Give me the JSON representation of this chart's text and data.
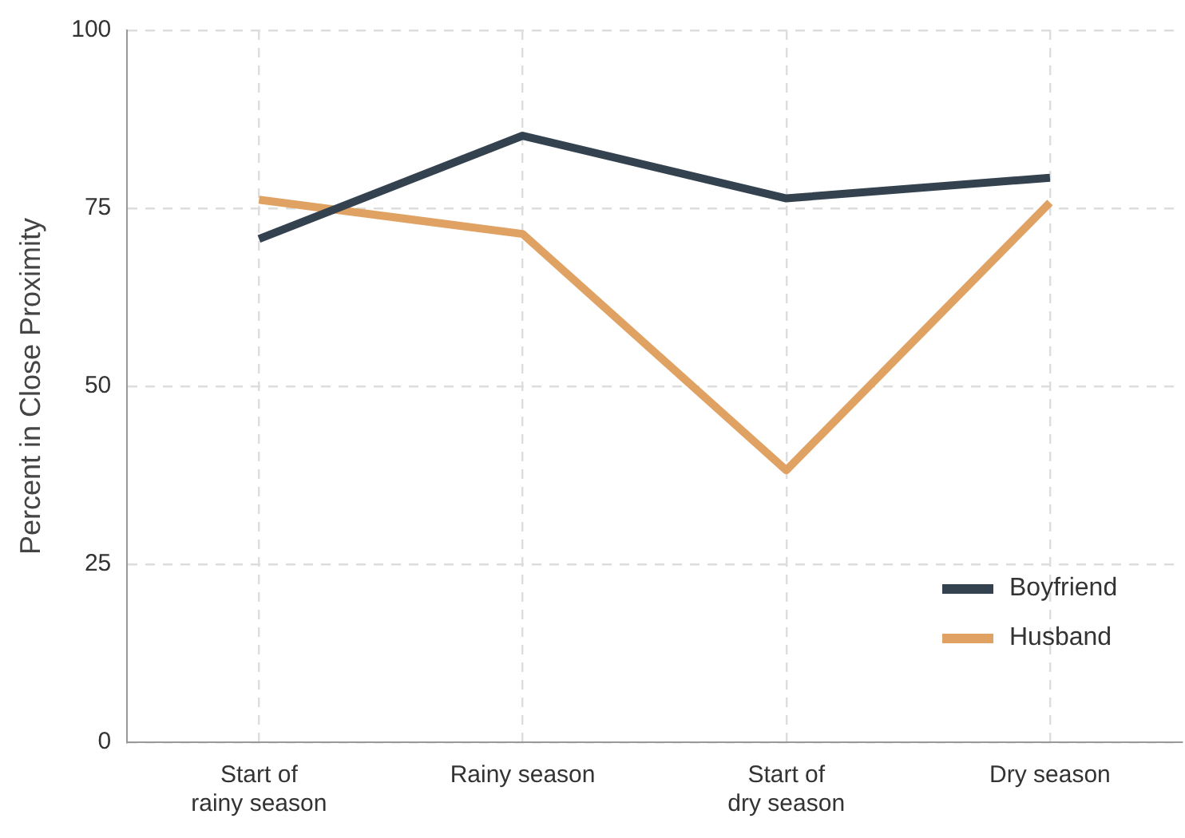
{
  "chart_data": {
    "type": "line",
    "ylabel": "Percent in Close Proximity",
    "categories": [
      "Start of\nrainy season",
      "Rainy season",
      "Start of\ndry season",
      "Dry season"
    ],
    "series": [
      {
        "name": "Boyfriend",
        "color": "#34424f",
        "values": [
          70.7,
          85.2,
          76.4,
          79.3
        ]
      },
      {
        "name": "Husband",
        "color": "#e0a263",
        "values": [
          76.2,
          71.4,
          38.2,
          75.8
        ]
      }
    ],
    "ylim": [
      0,
      100
    ],
    "yticks": [
      0,
      25,
      50,
      75,
      100
    ],
    "grid": true,
    "legend": "bottom right",
    "marker": "none",
    "line_style": "solid"
  }
}
